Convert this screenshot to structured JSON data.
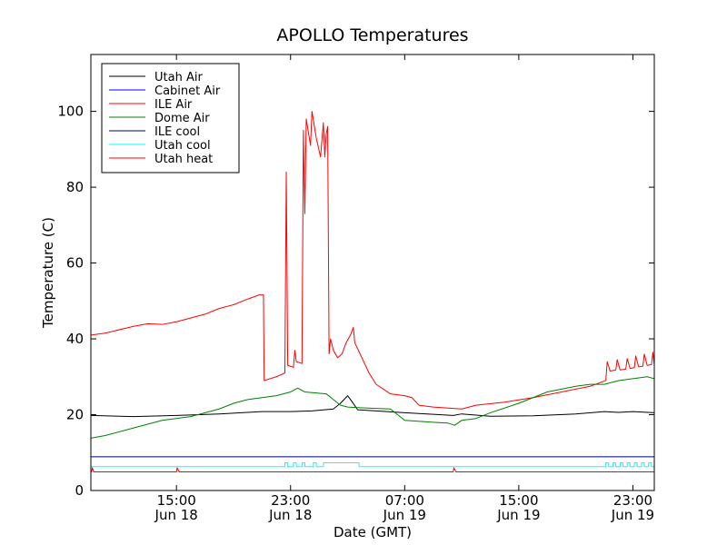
{
  "chart_data": {
    "type": "line",
    "title": "APOLLO Temperatures",
    "xlabel": "Date (GMT)",
    "ylabel": "Temperature (C)",
    "x_unit": "hours since Jun 18 09:00 GMT",
    "xlim": [
      0,
      39.5
    ],
    "ylim": [
      0,
      115
    ],
    "legend_position": "top-left",
    "yticks": [
      0,
      20,
      40,
      60,
      80,
      100
    ],
    "xticks": [
      {
        "x": 6,
        "line1": "15:00",
        "line2": "Jun 18"
      },
      {
        "x": 14,
        "line1": "23:00",
        "line2": "Jun 18"
      },
      {
        "x": 22,
        "line1": "07:00",
        "line2": "Jun 19"
      },
      {
        "x": 30,
        "line1": "15:00",
        "line2": "Jun 19"
      },
      {
        "x": 38,
        "line1": "23:00",
        "line2": "Jun 19"
      }
    ],
    "series": [
      {
        "name": "Utah Air",
        "color": "#000000",
        "points": [
          [
            0,
            19.8
          ],
          [
            3,
            19.5
          ],
          [
            6,
            19.8
          ],
          [
            9,
            20.2
          ],
          [
            12,
            20.8
          ],
          [
            14,
            20.8
          ],
          [
            15.5,
            21
          ],
          [
            17,
            21.5
          ],
          [
            17.5,
            23
          ],
          [
            18,
            25
          ],
          [
            18.3,
            23.5
          ],
          [
            18.7,
            21.3
          ],
          [
            20,
            21
          ],
          [
            22,
            20.5
          ],
          [
            24,
            20.1
          ],
          [
            25.4,
            19.8
          ],
          [
            26,
            20.2
          ],
          [
            28,
            19.6
          ],
          [
            31,
            19.7
          ],
          [
            34,
            20.2
          ],
          [
            36,
            20.8
          ],
          [
            37,
            20.6
          ],
          [
            38,
            20.8
          ],
          [
            39.5,
            20.5
          ]
        ]
      },
      {
        "name": "Cabinet Air",
        "color": "#0000ff",
        "points": []
      },
      {
        "name": "ILE Air",
        "color": "#ff0000",
        "points": [
          [
            0,
            41
          ],
          [
            1,
            41.5
          ],
          [
            3,
            43.3
          ],
          [
            4,
            44
          ],
          [
            5,
            43.8
          ],
          [
            6,
            44.5
          ],
          [
            8,
            46.5
          ],
          [
            9,
            48
          ],
          [
            10,
            49
          ],
          [
            11,
            50.5
          ],
          [
            11.8,
            51.6
          ],
          [
            12.1,
            51.6
          ],
          [
            12.15,
            29
          ],
          [
            13,
            30
          ],
          [
            13.6,
            31
          ],
          [
            13.7,
            84
          ],
          [
            13.8,
            33
          ],
          [
            14.2,
            32.5
          ],
          [
            14.3,
            37
          ],
          [
            14.4,
            34
          ],
          [
            14.8,
            33.5
          ],
          [
            14.9,
            95
          ],
          [
            15,
            73
          ],
          [
            15.1,
            98
          ],
          [
            15.4,
            91
          ],
          [
            15.5,
            100
          ],
          [
            15.8,
            93
          ],
          [
            16.1,
            88
          ],
          [
            16.3,
            97
          ],
          [
            16.4,
            88
          ],
          [
            16.5,
            94
          ],
          [
            16.6,
            96
          ],
          [
            16.7,
            36
          ],
          [
            16.8,
            40
          ],
          [
            17,
            37
          ],
          [
            17.3,
            35
          ],
          [
            17.6,
            36
          ],
          [
            17.9,
            39
          ],
          [
            18.2,
            41
          ],
          [
            18.4,
            43
          ],
          [
            18.5,
            39
          ],
          [
            19,
            35
          ],
          [
            19.5,
            31
          ],
          [
            20,
            28
          ],
          [
            21,
            25.5
          ],
          [
            22,
            25
          ],
          [
            22.5,
            24.5
          ],
          [
            23,
            22.5
          ],
          [
            24,
            22
          ],
          [
            26,
            21.5
          ],
          [
            27,
            22.5
          ],
          [
            29,
            23.3
          ],
          [
            31,
            24.5
          ],
          [
            33,
            26
          ],
          [
            35,
            27.5
          ],
          [
            36.1,
            29
          ],
          [
            36.2,
            34
          ],
          [
            36.4,
            31.5
          ],
          [
            36.8,
            31.8
          ],
          [
            36.9,
            34.5
          ],
          [
            37.1,
            31.8
          ],
          [
            37.5,
            32
          ],
          [
            37.6,
            34.8
          ],
          [
            37.8,
            32.2
          ],
          [
            38.1,
            32.4
          ],
          [
            38.2,
            35.5
          ],
          [
            38.4,
            32.6
          ],
          [
            38.7,
            32.8
          ],
          [
            38.8,
            36
          ],
          [
            39,
            33
          ],
          [
            39.3,
            33.2
          ],
          [
            39.4,
            36.5
          ],
          [
            39.5,
            33
          ]
        ]
      },
      {
        "name": "Dome Air",
        "color": "#008000",
        "points": [
          [
            0,
            13.8
          ],
          [
            1,
            14.5
          ],
          [
            3,
            16.5
          ],
          [
            5,
            18.5
          ],
          [
            7,
            19.5
          ],
          [
            9,
            21.5
          ],
          [
            10,
            23
          ],
          [
            11,
            24
          ],
          [
            13,
            25
          ],
          [
            14,
            26
          ],
          [
            14.5,
            27
          ],
          [
            15,
            26
          ],
          [
            16.5,
            25.5
          ],
          [
            17,
            24
          ],
          [
            17.5,
            22.5
          ],
          [
            18,
            22
          ],
          [
            19,
            21.8
          ],
          [
            21,
            21.5
          ],
          [
            21.5,
            20
          ],
          [
            22,
            18.5
          ],
          [
            24,
            18
          ],
          [
            25,
            17.8
          ],
          [
            25.5,
            17.2
          ],
          [
            26,
            18.5
          ],
          [
            27,
            19
          ],
          [
            28,
            20.5
          ],
          [
            30,
            23
          ],
          [
            32,
            26
          ],
          [
            34,
            27.5
          ],
          [
            35,
            28
          ],
          [
            36,
            28
          ],
          [
            37,
            29
          ],
          [
            39,
            30
          ],
          [
            39.5,
            29.5
          ]
        ]
      },
      {
        "name": "ILE cool",
        "color": "#000080",
        "points": [
          [
            0,
            8.9
          ],
          [
            39.5,
            8.9
          ]
        ]
      },
      {
        "name": "Utah cool",
        "color": "#00ffff",
        "points": [
          [
            0,
            6.3
          ],
          [
            13.6,
            6.3
          ],
          [
            13.6,
            7.3
          ],
          [
            13.8,
            7.3
          ],
          [
            13.8,
            6.3
          ],
          [
            14.2,
            6.3
          ],
          [
            14.2,
            7.3
          ],
          [
            14.4,
            7.3
          ],
          [
            14.4,
            6.3
          ],
          [
            14.8,
            6.3
          ],
          [
            14.8,
            7.3
          ],
          [
            15,
            7.3
          ],
          [
            15,
            6.3
          ],
          [
            15.6,
            6.3
          ],
          [
            15.6,
            7.3
          ],
          [
            15.8,
            7.3
          ],
          [
            15.8,
            6.3
          ],
          [
            16.3,
            6.3
          ],
          [
            16.3,
            7.3
          ],
          [
            18.8,
            7.3
          ],
          [
            18.8,
            6.3
          ],
          [
            36.1,
            6.3
          ],
          [
            36.1,
            7.3
          ],
          [
            36.3,
            7.3
          ],
          [
            36.3,
            6.3
          ],
          [
            36.6,
            6.3
          ],
          [
            36.6,
            7.3
          ],
          [
            36.8,
            7.3
          ],
          [
            36.8,
            6.3
          ],
          [
            37.1,
            6.3
          ],
          [
            37.1,
            7.3
          ],
          [
            37.3,
            7.3
          ],
          [
            37.3,
            6.3
          ],
          [
            37.6,
            6.3
          ],
          [
            37.6,
            7.3
          ],
          [
            37.8,
            7.3
          ],
          [
            37.8,
            6.3
          ],
          [
            38.1,
            6.3
          ],
          [
            38.1,
            7.3
          ],
          [
            38.3,
            7.3
          ],
          [
            38.3,
            6.3
          ],
          [
            38.6,
            6.3
          ],
          [
            38.6,
            7.3
          ],
          [
            38.8,
            7.3
          ],
          [
            38.8,
            6.3
          ],
          [
            39.1,
            6.3
          ],
          [
            39.1,
            7.3
          ],
          [
            39.3,
            7.3
          ],
          [
            39.3,
            6.3
          ],
          [
            39.5,
            6.3
          ]
        ]
      },
      {
        "name": "Utah heat",
        "color": "#ff0000",
        "points": [
          [
            0,
            4.9
          ],
          [
            0.05,
            4.9
          ],
          [
            0.1,
            6
          ],
          [
            0.2,
            4.9
          ],
          [
            6,
            4.9
          ],
          [
            6.05,
            6
          ],
          [
            6.2,
            4.9
          ],
          [
            25.4,
            4.9
          ],
          [
            25.45,
            6
          ],
          [
            25.6,
            4.9
          ],
          [
            39.5,
            4.9
          ]
        ]
      }
    ]
  }
}
